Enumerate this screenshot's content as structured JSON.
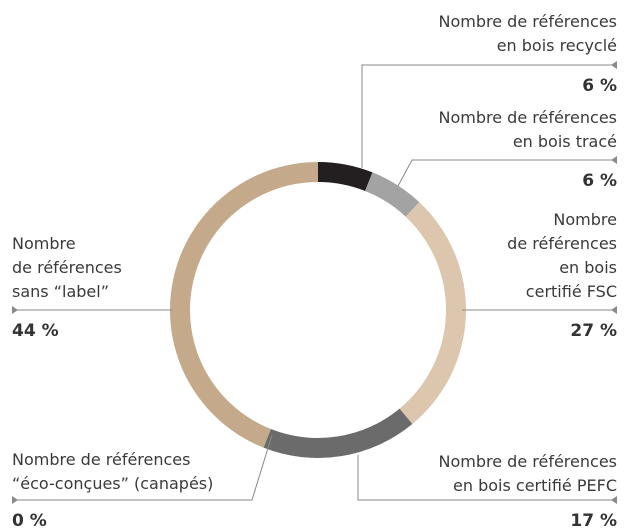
{
  "chart_data": {
    "type": "donut",
    "categories": [
      "Nombre de références\nen bois recyclé",
      "Nombre de références\nen bois tracé",
      "Nombre\nde références\nen bois\ncertifié FSC",
      "Nombre de références\nen bois certifié PEFC",
      "Nombre de références\n“éco-conçues” (canapés)",
      "Nombre\nde références\nsans “label”"
    ],
    "values": [
      6,
      6,
      27,
      17,
      0,
      44
    ],
    "value_labels": [
      "6 %",
      "6 %",
      "27 %",
      "17 %",
      "0 %",
      "44 %"
    ],
    "colors": [
      "#231f20",
      "#a3a3a3",
      "#dcc6ad",
      "#6b6b6b",
      "#8c8c8c",
      "#c4aa8a"
    ]
  }
}
